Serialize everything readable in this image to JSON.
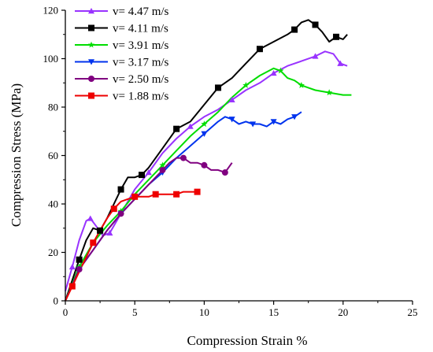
{
  "chart_data": {
    "type": "line",
    "title": "",
    "xlabel": "Compression Strain %",
    "ylabel": "Compression Stress (MPa)",
    "xlim": [
      0,
      25
    ],
    "ylim": [
      0,
      120
    ],
    "xticks": [
      0,
      5,
      10,
      15,
      20,
      25
    ],
    "yticks": [
      0,
      20,
      40,
      60,
      80,
      100,
      120
    ],
    "x_tick_labels": [
      "0",
      "5",
      "10",
      "15",
      "20",
      "25"
    ],
    "y_tick_labels": [
      "0",
      "20",
      "40",
      "60",
      "80",
      "100",
      "120"
    ],
    "grid": false,
    "legend_position": "top-left",
    "series": [
      {
        "name": "v= 4.47 m/s",
        "color": "#9933ff",
        "marker": "triangle-up",
        "x": [
          0,
          0.5,
          1.0,
          1.5,
          1.8,
          2.2,
          2.7,
          3.2,
          4.0,
          5.0,
          6.0,
          7.0,
          8.0,
          9.0,
          10.0,
          11.0,
          12.0,
          13.0,
          14.0,
          15.0,
          16.0,
          17.0,
          18.0,
          18.7,
          19.3,
          19.8,
          20.3
        ],
        "y": [
          4,
          14,
          25,
          33,
          34,
          31,
          27,
          28,
          36,
          46,
          53,
          61,
          67,
          72,
          76,
          79,
          83,
          87,
          90,
          94,
          97,
          99,
          101,
          103,
          102,
          98,
          97
        ]
      },
      {
        "name": "v= 4.11 m/s",
        "color": "#000000",
        "marker": "square",
        "x": [
          0,
          1.0,
          1.5,
          2.0,
          2.5,
          3.0,
          3.5,
          4.0,
          4.5,
          5.0,
          5.5,
          6.0,
          7.0,
          8.0,
          9.0,
          10.0,
          11.0,
          12.0,
          13.0,
          14.0,
          15.0,
          16.0,
          16.5,
          17.0,
          17.5,
          18.0,
          18.5,
          19.0,
          19.5,
          20.0,
          20.3
        ],
        "y": [
          0,
          17,
          25,
          30,
          29,
          34,
          40,
          46,
          51,
          51,
          52,
          55,
          63,
          71,
          74,
          81,
          88,
          92,
          98,
          104,
          107,
          110,
          112,
          115,
          116,
          114,
          111,
          107,
          109,
          108,
          110
        ]
      },
      {
        "name": "v= 3.91 m/s",
        "color": "#00dd00",
        "marker": "star",
        "x": [
          0,
          1.0,
          2.0,
          3.0,
          4.0,
          5.0,
          6.0,
          7.0,
          8.0,
          9.0,
          10.0,
          11.0,
          12.0,
          13.0,
          14.0,
          15.0,
          15.5,
          16.0,
          16.5,
          17.0,
          17.5,
          18.0,
          19.0,
          20.0,
          20.6
        ],
        "y": [
          0,
          14,
          24,
          31,
          37,
          44,
          50,
          56,
          62,
          68,
          73,
          78,
          84,
          89,
          93,
          96,
          95,
          92,
          91,
          89,
          88,
          87,
          86,
          85,
          85
        ]
      },
      {
        "name": "v= 3.17 m/s",
        "color": "#0033ee",
        "marker": "triangle-down",
        "x": [
          0,
          1.0,
          2.0,
          3.0,
          4.0,
          5.0,
          6.0,
          7.0,
          8.0,
          9.0,
          10.0,
          11.0,
          11.5,
          12.0,
          12.5,
          13.0,
          13.5,
          14.0,
          14.5,
          15.0,
          15.5,
          16.0,
          16.5,
          17.0
        ],
        "y": [
          0,
          13,
          21,
          29,
          36,
          42,
          48,
          53,
          59,
          64,
          69,
          74,
          76,
          75,
          73,
          74,
          73,
          73,
          72,
          74,
          73,
          75,
          76,
          78
        ]
      },
      {
        "name": "v= 2.50 m/s",
        "color": "#800080",
        "marker": "circle",
        "x": [
          0,
          1.0,
          2.0,
          3.0,
          4.0,
          5.0,
          6.0,
          7.0,
          7.5,
          8.0,
          8.5,
          9.0,
          9.5,
          10.0,
          10.5,
          11.0,
          11.5,
          12.0
        ],
        "y": [
          0,
          13,
          21,
          29,
          36,
          42,
          48,
          54,
          57,
          59,
          59,
          57,
          57,
          56,
          54,
          54,
          53,
          57
        ]
      },
      {
        "name": "v= 1.88 m/s",
        "color": "#ee0000",
        "marker": "square",
        "x": [
          0,
          0.5,
          1.0,
          1.5,
          2.0,
          2.5,
          3.0,
          3.5,
          4.0,
          4.5,
          5.0,
          5.5,
          6.0,
          6.5,
          7.0,
          7.5,
          8.0,
          8.5,
          9.0,
          9.5
        ],
        "y": [
          0,
          6,
          12,
          18,
          24,
          29,
          34,
          38,
          41,
          42,
          43,
          43,
          43,
          44,
          44,
          44,
          44,
          45,
          45,
          45
        ]
      }
    ]
  }
}
